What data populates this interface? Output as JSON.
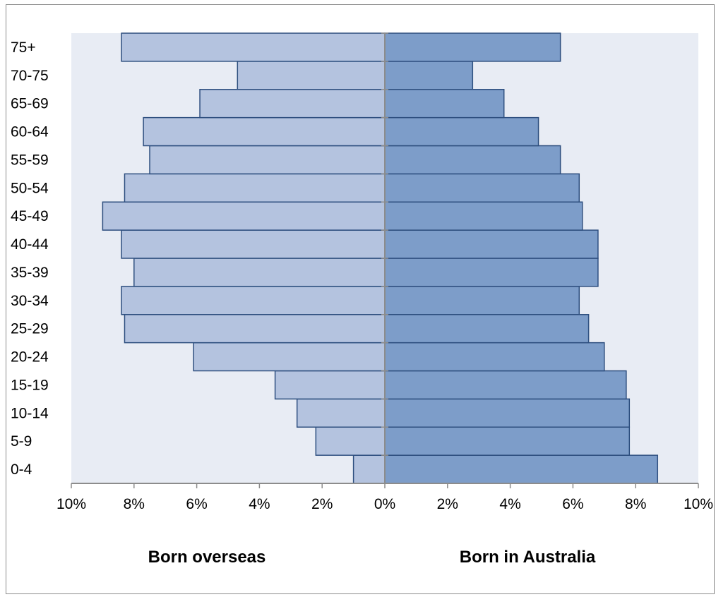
{
  "chart_data": {
    "type": "bar",
    "orientation": "horizontal",
    "layout": "population-pyramid",
    "categories": [
      "0-4",
      "5-9",
      "10-14",
      "15-19",
      "20-24",
      "25-29",
      "30-34",
      "35-39",
      "40-44",
      "45-49",
      "50-54",
      "55-59",
      "60-64",
      "65-69",
      "70-75",
      "75+"
    ],
    "series": [
      {
        "name": "Born overseas",
        "side": "left",
        "color": "#b4c3df",
        "values": [
          1.0,
          2.2,
          2.8,
          3.5,
          6.1,
          8.3,
          8.4,
          8.0,
          8.4,
          9.0,
          8.3,
          7.5,
          7.7,
          5.9,
          4.7,
          8.4
        ]
      },
      {
        "name": "Born in Australia",
        "side": "right",
        "color": "#7d9dc9",
        "values": [
          8.7,
          7.8,
          7.8,
          7.7,
          7.0,
          6.5,
          6.2,
          6.8,
          6.8,
          6.3,
          6.2,
          5.6,
          4.9,
          3.8,
          2.8,
          5.6
        ]
      }
    ],
    "x_ticks": [
      "10%",
      "8%",
      "6%",
      "4%",
      "2%",
      "0%",
      "2%",
      "4%",
      "6%",
      "8%",
      "10%"
    ],
    "xlim": [
      -10,
      10
    ],
    "unit": "%",
    "group_labels": {
      "left": "Born overseas",
      "right": "Born in Australia"
    },
    "title": "",
    "xlabel": "",
    "ylabel": "",
    "grid": false,
    "legend": "none",
    "plot_background": "#e8ecf4",
    "bar_border_color": "#2e4f7f"
  }
}
